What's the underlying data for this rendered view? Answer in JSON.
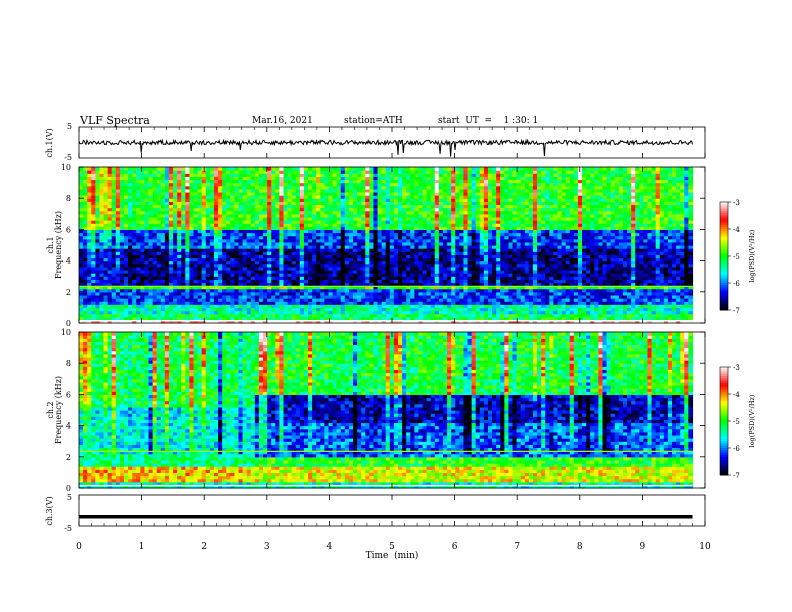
{
  "header": {
    "title": "VLF  Spectra",
    "date": "Mar.16, 2021",
    "station": "station=ATH",
    "start": "start  UT  =    1 :30: 1"
  },
  "colors": {
    "colormap": [
      "#000000",
      "#0000ff",
      "#00ffff",
      "#00ff00",
      "#ffff00",
      "#ff0000",
      "#ffffff"
    ],
    "trace": "#000000"
  },
  "chart_data": [
    {
      "type": "line",
      "name": "ch1-waveform",
      "ylabel": "ch.1(V)",
      "yticks": [
        "5",
        "-5"
      ],
      "ylim": [
        -5,
        5
      ],
      "x_range_min": [
        0,
        9.8
      ],
      "approx_level_v": 0.0
    },
    {
      "type": "heatmap",
      "name": "ch1-spectrogram",
      "ylabel": "ch.1\nFrequency (kHz)",
      "yticks": [
        "10",
        "8",
        "6",
        "4",
        "2",
        "0"
      ],
      "ylim_khz": [
        0,
        10
      ],
      "x_range_min": [
        0,
        9.8
      ],
      "colorbar": {
        "label": "log(PSD)(V²/Hz)",
        "range": [
          -7,
          -3
        ],
        "ticks": [
          "-3",
          "-4",
          "-5",
          "-6",
          "-7"
        ]
      },
      "bands": [
        {
          "from_khz": 0.0,
          "to_khz": 0.2,
          "level": -3.0
        },
        {
          "from_khz": 0.2,
          "to_khz": 0.6,
          "level": -5.2
        },
        {
          "from_khz": 0.6,
          "to_khz": 1.2,
          "level": -5.5
        },
        {
          "from_khz": 1.2,
          "to_khz": 2.2,
          "level": -6.2
        },
        {
          "from_khz": 2.2,
          "to_khz": 2.4,
          "level": -5.0
        },
        {
          "from_khz": 2.4,
          "to_khz": 4.8,
          "level": -6.6
        },
        {
          "from_khz": 4.8,
          "to_khz": 6.0,
          "level": -6.2
        },
        {
          "from_khz": 6.0,
          "to_khz": 10.0,
          "level": -5.0
        }
      ]
    },
    {
      "type": "heatmap",
      "name": "ch2-spectrogram",
      "ylabel": "ch.2\nFrequency (kHz)",
      "yticks": [
        "10",
        "8",
        "6",
        "4",
        "2",
        "0"
      ],
      "ylim_khz": [
        0,
        10
      ],
      "x_range_min": [
        0,
        9.8
      ],
      "colorbar": {
        "label": "log(PSD)(V²/Hz)",
        "range": [
          -7,
          -3
        ],
        "ticks": [
          "-3",
          "-4",
          "-5",
          "-6",
          "-7"
        ]
      },
      "bands_early": [
        {
          "from_khz": 0.0,
          "to_khz": 0.4,
          "level": -5.5
        },
        {
          "from_khz": 0.4,
          "to_khz": 1.4,
          "level": -4.2
        },
        {
          "from_khz": 1.4,
          "to_khz": 2.2,
          "level": -5.3
        },
        {
          "from_khz": 2.2,
          "to_khz": 5.2,
          "level": -5.6
        },
        {
          "from_khz": 5.2,
          "to_khz": 10.0,
          "level": -5.2
        }
      ],
      "bands_late": [
        {
          "from_khz": 0.0,
          "to_khz": 0.4,
          "level": -5.5
        },
        {
          "from_khz": 0.4,
          "to_khz": 1.4,
          "level": -4.4
        },
        {
          "from_khz": 1.4,
          "to_khz": 2.0,
          "level": -5.0
        },
        {
          "from_khz": 2.0,
          "to_khz": 4.2,
          "level": -6.1
        },
        {
          "from_khz": 4.2,
          "to_khz": 6.0,
          "level": -6.5
        },
        {
          "from_khz": 6.0,
          "to_khz": 10.0,
          "level": -5.1
        }
      ],
      "change_min": 2.8
    },
    {
      "type": "line",
      "name": "ch3-waveform",
      "ylabel": "ch.3(V)",
      "yticks": [
        "5",
        "-5"
      ],
      "ylim": [
        -5,
        5
      ],
      "x_range_min": [
        0,
        9.8
      ],
      "approx_level_v": -2.0
    }
  ],
  "xaxis": {
    "label": "Time  (min)",
    "ticks": [
      "0",
      "1",
      "2",
      "3",
      "4",
      "5",
      "6",
      "7",
      "8",
      "9",
      "10"
    ],
    "xlim": [
      0,
      10
    ]
  }
}
